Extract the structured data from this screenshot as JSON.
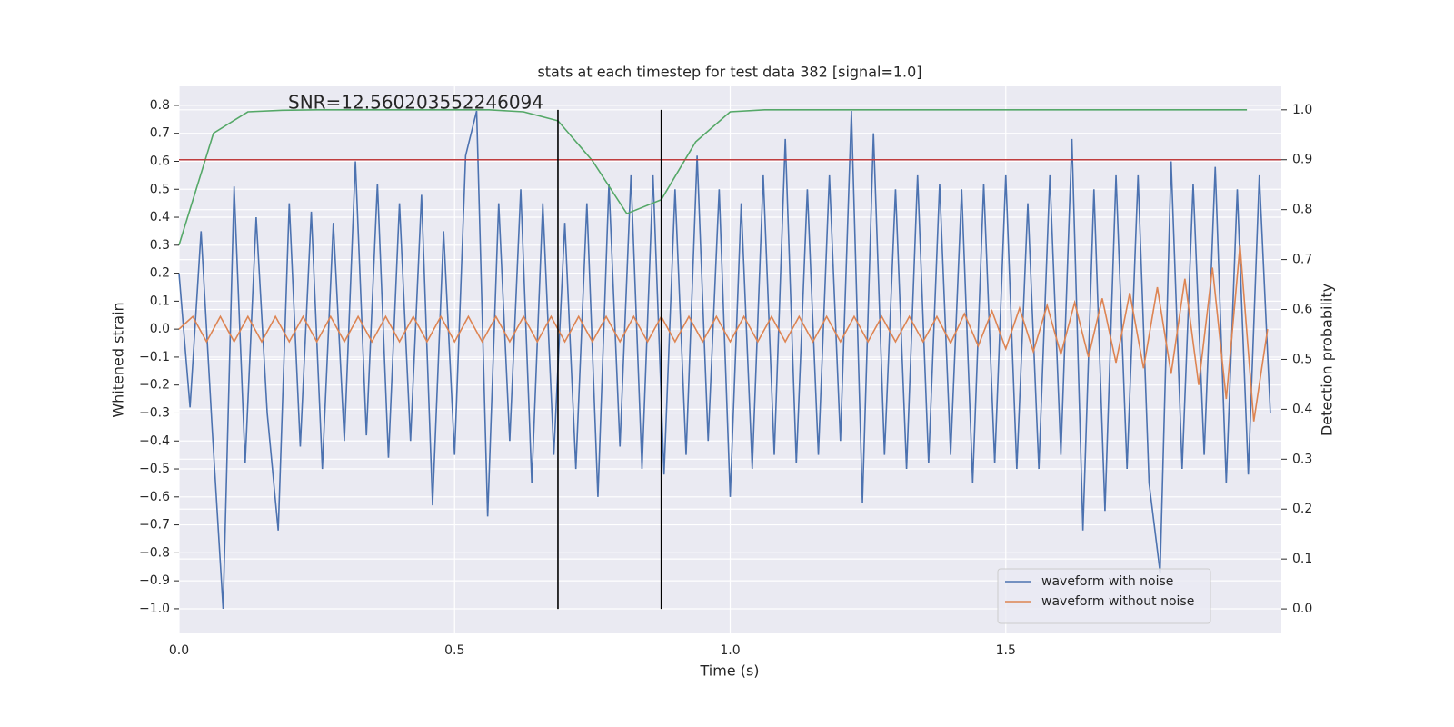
{
  "chart_data": {
    "type": "line",
    "title": "stats at each timestep for test data 382 [signal=1.0]",
    "x_label": "Time (s)",
    "y_label": "Whitened strain",
    "y2_label": "Detection probability",
    "annotation": "SNR=12.560203552246094",
    "grid": true,
    "legend": "lower right",
    "xlim": [
      0,
      2.0
    ],
    "xticks": [
      {
        "value": 0,
        "label": "0.0"
      },
      0.5,
      {
        "value": 1,
        "label": "1.0"
      },
      1.5
    ],
    "ylim": [
      -1.088,
      0.868
    ],
    "yticks": [
      {
        "value": -1,
        "label": "−1.0"
      },
      {
        "value": -0.9,
        "label": "−0.9"
      },
      {
        "value": -0.8,
        "label": "−0.8"
      },
      {
        "value": -0.7,
        "label": "−0.7"
      },
      {
        "value": -0.6,
        "label": "−0.6"
      },
      {
        "value": -0.5,
        "label": "−0.5"
      },
      {
        "value": -0.4,
        "label": "−0.4"
      },
      {
        "value": -0.3,
        "label": "−0.3"
      },
      {
        "value": -0.2,
        "label": "−0.2"
      },
      {
        "value": -0.1,
        "label": "−0.1"
      },
      {
        "value": 0,
        "label": "0.0"
      },
      0.1,
      0.2,
      0.3,
      0.4,
      0.5,
      0.6,
      0.7,
      0.8
    ],
    "y2lim": [
      -0.049,
      1.047
    ],
    "y2ticks": [
      {
        "value": 0,
        "label": "0.0"
      },
      0.1,
      0.2,
      0.3,
      0.4,
      0.5,
      0.6,
      0.7,
      0.8,
      0.9,
      {
        "value": 1,
        "label": "1.0"
      }
    ],
    "series": [
      {
        "name": "waveform with noise",
        "color": "#4c72b0",
        "x": [
          0,
          0.02,
          0.04,
          0.06,
          0.08,
          0.1,
          0.12,
          0.14,
          0.16,
          0.18,
          0.2,
          0.22,
          0.24,
          0.26,
          0.28,
          0.3,
          0.32,
          0.34,
          0.36,
          0.38,
          0.4,
          0.42,
          0.44,
          0.46,
          0.48,
          0.5,
          0.52,
          0.54,
          0.56,
          0.58,
          0.6,
          0.62,
          0.64,
          0.66,
          0.68,
          0.7,
          0.72,
          0.74,
          0.76,
          0.78,
          0.8,
          0.82,
          0.84,
          0.86,
          0.88,
          0.9,
          0.92,
          0.94,
          0.96,
          0.98,
          1.0,
          1.02,
          1.04,
          1.06,
          1.08,
          1.1,
          1.12,
          1.14,
          1.16,
          1.18,
          1.2,
          1.22,
          1.24,
          1.26,
          1.28,
          1.3,
          1.32,
          1.34,
          1.36,
          1.38,
          1.4,
          1.42,
          1.44,
          1.46,
          1.48,
          1.5,
          1.52,
          1.54,
          1.56,
          1.58,
          1.6,
          1.62,
          1.64,
          1.66,
          1.68,
          1.7,
          1.72,
          1.74,
          1.76,
          1.78,
          1.8,
          1.82,
          1.84,
          1.86,
          1.88,
          1.9,
          1.92,
          1.94,
          1.96,
          1.98
        ],
        "values": [
          0.2,
          -0.28,
          0.35,
          -0.35,
          -1.0,
          0.51,
          -0.48,
          0.4,
          -0.3,
          -0.72,
          0.45,
          -0.42,
          0.42,
          -0.5,
          0.38,
          -0.4,
          0.6,
          -0.38,
          0.52,
          -0.46,
          0.45,
          -0.4,
          0.48,
          -0.63,
          0.35,
          -0.45,
          0.62,
          0.78,
          -0.67,
          0.45,
          -0.4,
          0.5,
          -0.55,
          0.45,
          -0.45,
          0.38,
          -0.5,
          0.45,
          -0.6,
          0.52,
          -0.42,
          0.55,
          -0.5,
          0.55,
          -0.52,
          0.5,
          -0.45,
          0.62,
          -0.4,
          0.5,
          -0.6,
          0.45,
          -0.5,
          0.55,
          -0.45,
          0.68,
          -0.48,
          0.5,
          -0.45,
          0.55,
          -0.4,
          0.78,
          -0.62,
          0.7,
          -0.45,
          0.5,
          -0.5,
          0.55,
          -0.48,
          0.52,
          -0.45,
          0.5,
          -0.55,
          0.52,
          -0.48,
          0.55,
          -0.5,
          0.45,
          -0.5,
          0.55,
          -0.45,
          0.68,
          -0.72,
          0.5,
          -0.65,
          0.55,
          -0.5,
          0.55,
          -0.55,
          -0.87,
          0.6,
          -0.5,
          0.52,
          -0.45,
          0.58,
          -0.55,
          0.5,
          -0.52,
          0.55,
          -0.3
        ]
      },
      {
        "name": "waveform without noise",
        "color": "#dd8452",
        "x": [
          0,
          0.025,
          0.05,
          0.075,
          0.1,
          0.125,
          0.15,
          0.175,
          0.2,
          0.225,
          0.25,
          0.275,
          0.3,
          0.325,
          0.35,
          0.375,
          0.4,
          0.425,
          0.45,
          0.475,
          0.5,
          0.525,
          0.55,
          0.575,
          0.6,
          0.625,
          0.65,
          0.675,
          0.7,
          0.725,
          0.75,
          0.775,
          0.8,
          0.825,
          0.85,
          0.875,
          0.9,
          0.925,
          0.95,
          0.975,
          1.0,
          1.025,
          1.05,
          1.075,
          1.1,
          1.125,
          1.15,
          1.175,
          1.2,
          1.225,
          1.25,
          1.275,
          1.3,
          1.325,
          1.35,
          1.375,
          1.4,
          1.425,
          1.45,
          1.475,
          1.5,
          1.525,
          1.55,
          1.575,
          1.6,
          1.625,
          1.65,
          1.675,
          1.7,
          1.725,
          1.75,
          1.775,
          1.8,
          1.825,
          1.85,
          1.875,
          1.9,
          1.925,
          1.95,
          1.975
        ],
        "values": [
          0,
          0.045,
          -0.045,
          0.045,
          -0.045,
          0.045,
          -0.045,
          0.045,
          -0.045,
          0.045,
          -0.045,
          0.045,
          -0.045,
          0.045,
          -0.045,
          0.045,
          -0.045,
          0.045,
          -0.045,
          0.045,
          -0.045,
          0.045,
          -0.045,
          0.045,
          -0.045,
          0.045,
          -0.045,
          0.045,
          -0.045,
          0.045,
          -0.045,
          0.045,
          -0.045,
          0.045,
          -0.045,
          0.045,
          -0.045,
          0.045,
          -0.045,
          0.045,
          -0.045,
          0.045,
          -0.045,
          0.045,
          -0.045,
          0.045,
          -0.045,
          0.045,
          -0.045,
          0.045,
          -0.045,
          0.045,
          -0.045,
          0.045,
          -0.045,
          0.045,
          -0.05,
          0.055,
          -0.06,
          0.065,
          -0.07,
          0.075,
          -0.08,
          0.085,
          -0.09,
          0.095,
          -0.1,
          0.11,
          -0.12,
          0.13,
          -0.14,
          0.15,
          -0.16,
          0.18,
          -0.2,
          0.22,
          -0.25,
          0.3,
          -0.33,
          0
        ]
      },
      {
        "color": "#55a868",
        "axis": "y2",
        "x": [
          0,
          0.0625,
          0.125,
          0.1875,
          0.25,
          0.3125,
          0.375,
          0.4375,
          0.5,
          0.5625,
          0.625,
          0.6875,
          0.75,
          0.8125,
          0.875,
          0.9375,
          1.0,
          1.0625,
          1.125,
          1.1875,
          1.25,
          1.3125,
          1.375,
          1.4375,
          1.5,
          1.5625,
          1.625,
          1.6875,
          1.75,
          1.8125,
          1.875,
          1.9375
        ],
        "values": [
          0.729,
          0.953,
          0.996,
          0.999,
          1.0,
          1.0,
          1.0,
          1.0,
          1.0,
          1.0,
          0.996,
          0.978,
          0.898,
          0.792,
          0.82,
          0.936,
          0.996,
          1.0,
          1.0,
          1.0,
          1.0,
          1.0,
          1.0,
          1.0,
          1.0,
          1.0,
          1.0,
          1.0,
          1.0,
          1.0,
          1.0,
          1.0
        ]
      }
    ],
    "threshold": {
      "value": 0.9,
      "axis": "y2",
      "color": "#c03d3e"
    },
    "vlines": {
      "x": [
        0.6875,
        0.875
      ],
      "color": "#000000"
    }
  }
}
